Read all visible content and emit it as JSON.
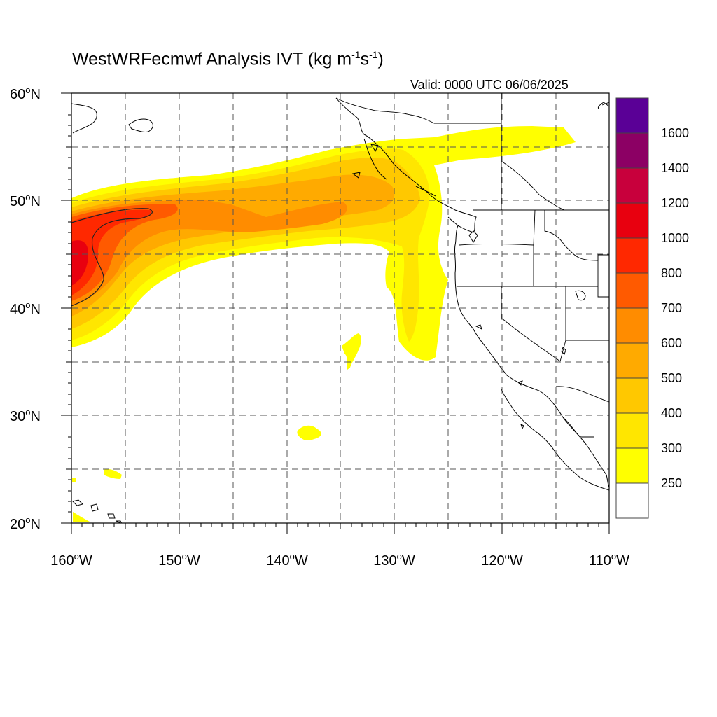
{
  "title": {
    "main": "WestWRFecmwf Analysis IVT (kg m",
    "sup1": "-1",
    "mid": "s",
    "sup2": "-1",
    "close": ")"
  },
  "valid_text": "Valid: 0000 UTC 06/06/2025",
  "map": {
    "lon_range": [
      -160,
      -110
    ],
    "lat_range": [
      20,
      60
    ],
    "lat_labels": [
      {
        "deg": "60",
        "hemi": "N"
      },
      {
        "deg": "50",
        "hemi": "N"
      },
      {
        "deg": "40",
        "hemi": "N"
      },
      {
        "deg": "30",
        "hemi": "N"
      },
      {
        "deg": "20",
        "hemi": "N"
      }
    ],
    "lon_labels": [
      {
        "deg": "160",
        "hemi": "W"
      },
      {
        "deg": "150",
        "hemi": "W"
      },
      {
        "deg": "140",
        "hemi": "W"
      },
      {
        "deg": "130",
        "hemi": "W"
      },
      {
        "deg": "120",
        "hemi": "W"
      },
      {
        "deg": "110",
        "hemi": "W"
      }
    ],
    "grid_style": "dashed",
    "grid_interval_deg": 5
  },
  "colorbar": {
    "labels": [
      "250",
      "300",
      "400",
      "500",
      "600",
      "700",
      "800",
      "1000",
      "1200",
      "1400",
      "1600"
    ],
    "colors": [
      "#ffffff",
      "#ffff00",
      "#ffe600",
      "#ffc800",
      "#ffaa00",
      "#ff8c00",
      "#ff5a00",
      "#ff2800",
      "#e8000f",
      "#c8003c",
      "#8c0064",
      "#5a0096"
    ]
  }
}
